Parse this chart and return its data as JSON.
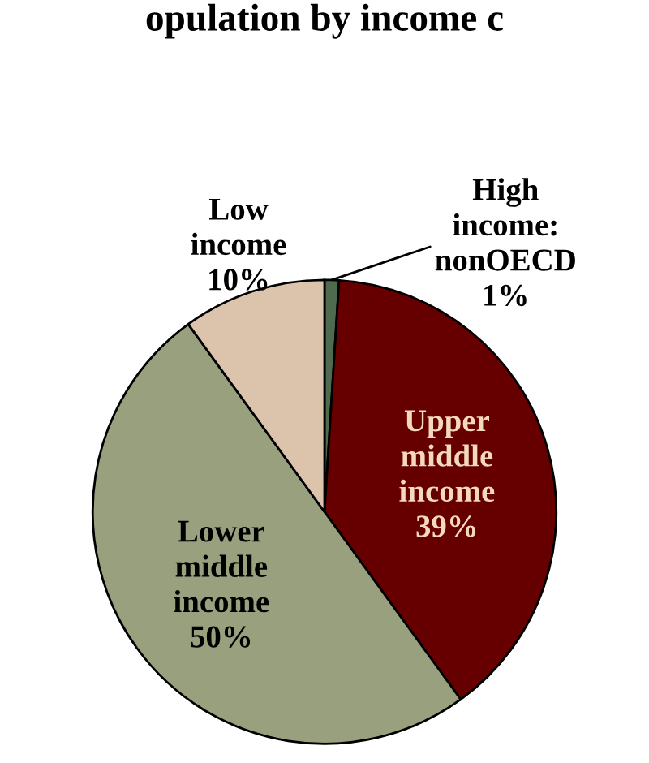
{
  "chart_data": {
    "type": "pie",
    "title": "opulation by income c",
    "categories": [
      "High income: nonOECD",
      "Upper middle income",
      "Lower middle income",
      "Low income"
    ],
    "values": [
      1,
      39,
      50,
      10
    ],
    "value_labels": [
      "1%",
      "39%",
      "50%",
      "10%"
    ],
    "colors": [
      "#4f6b4f",
      "#660000",
      "#98a07e",
      "#dcc3ab"
    ]
  }
}
